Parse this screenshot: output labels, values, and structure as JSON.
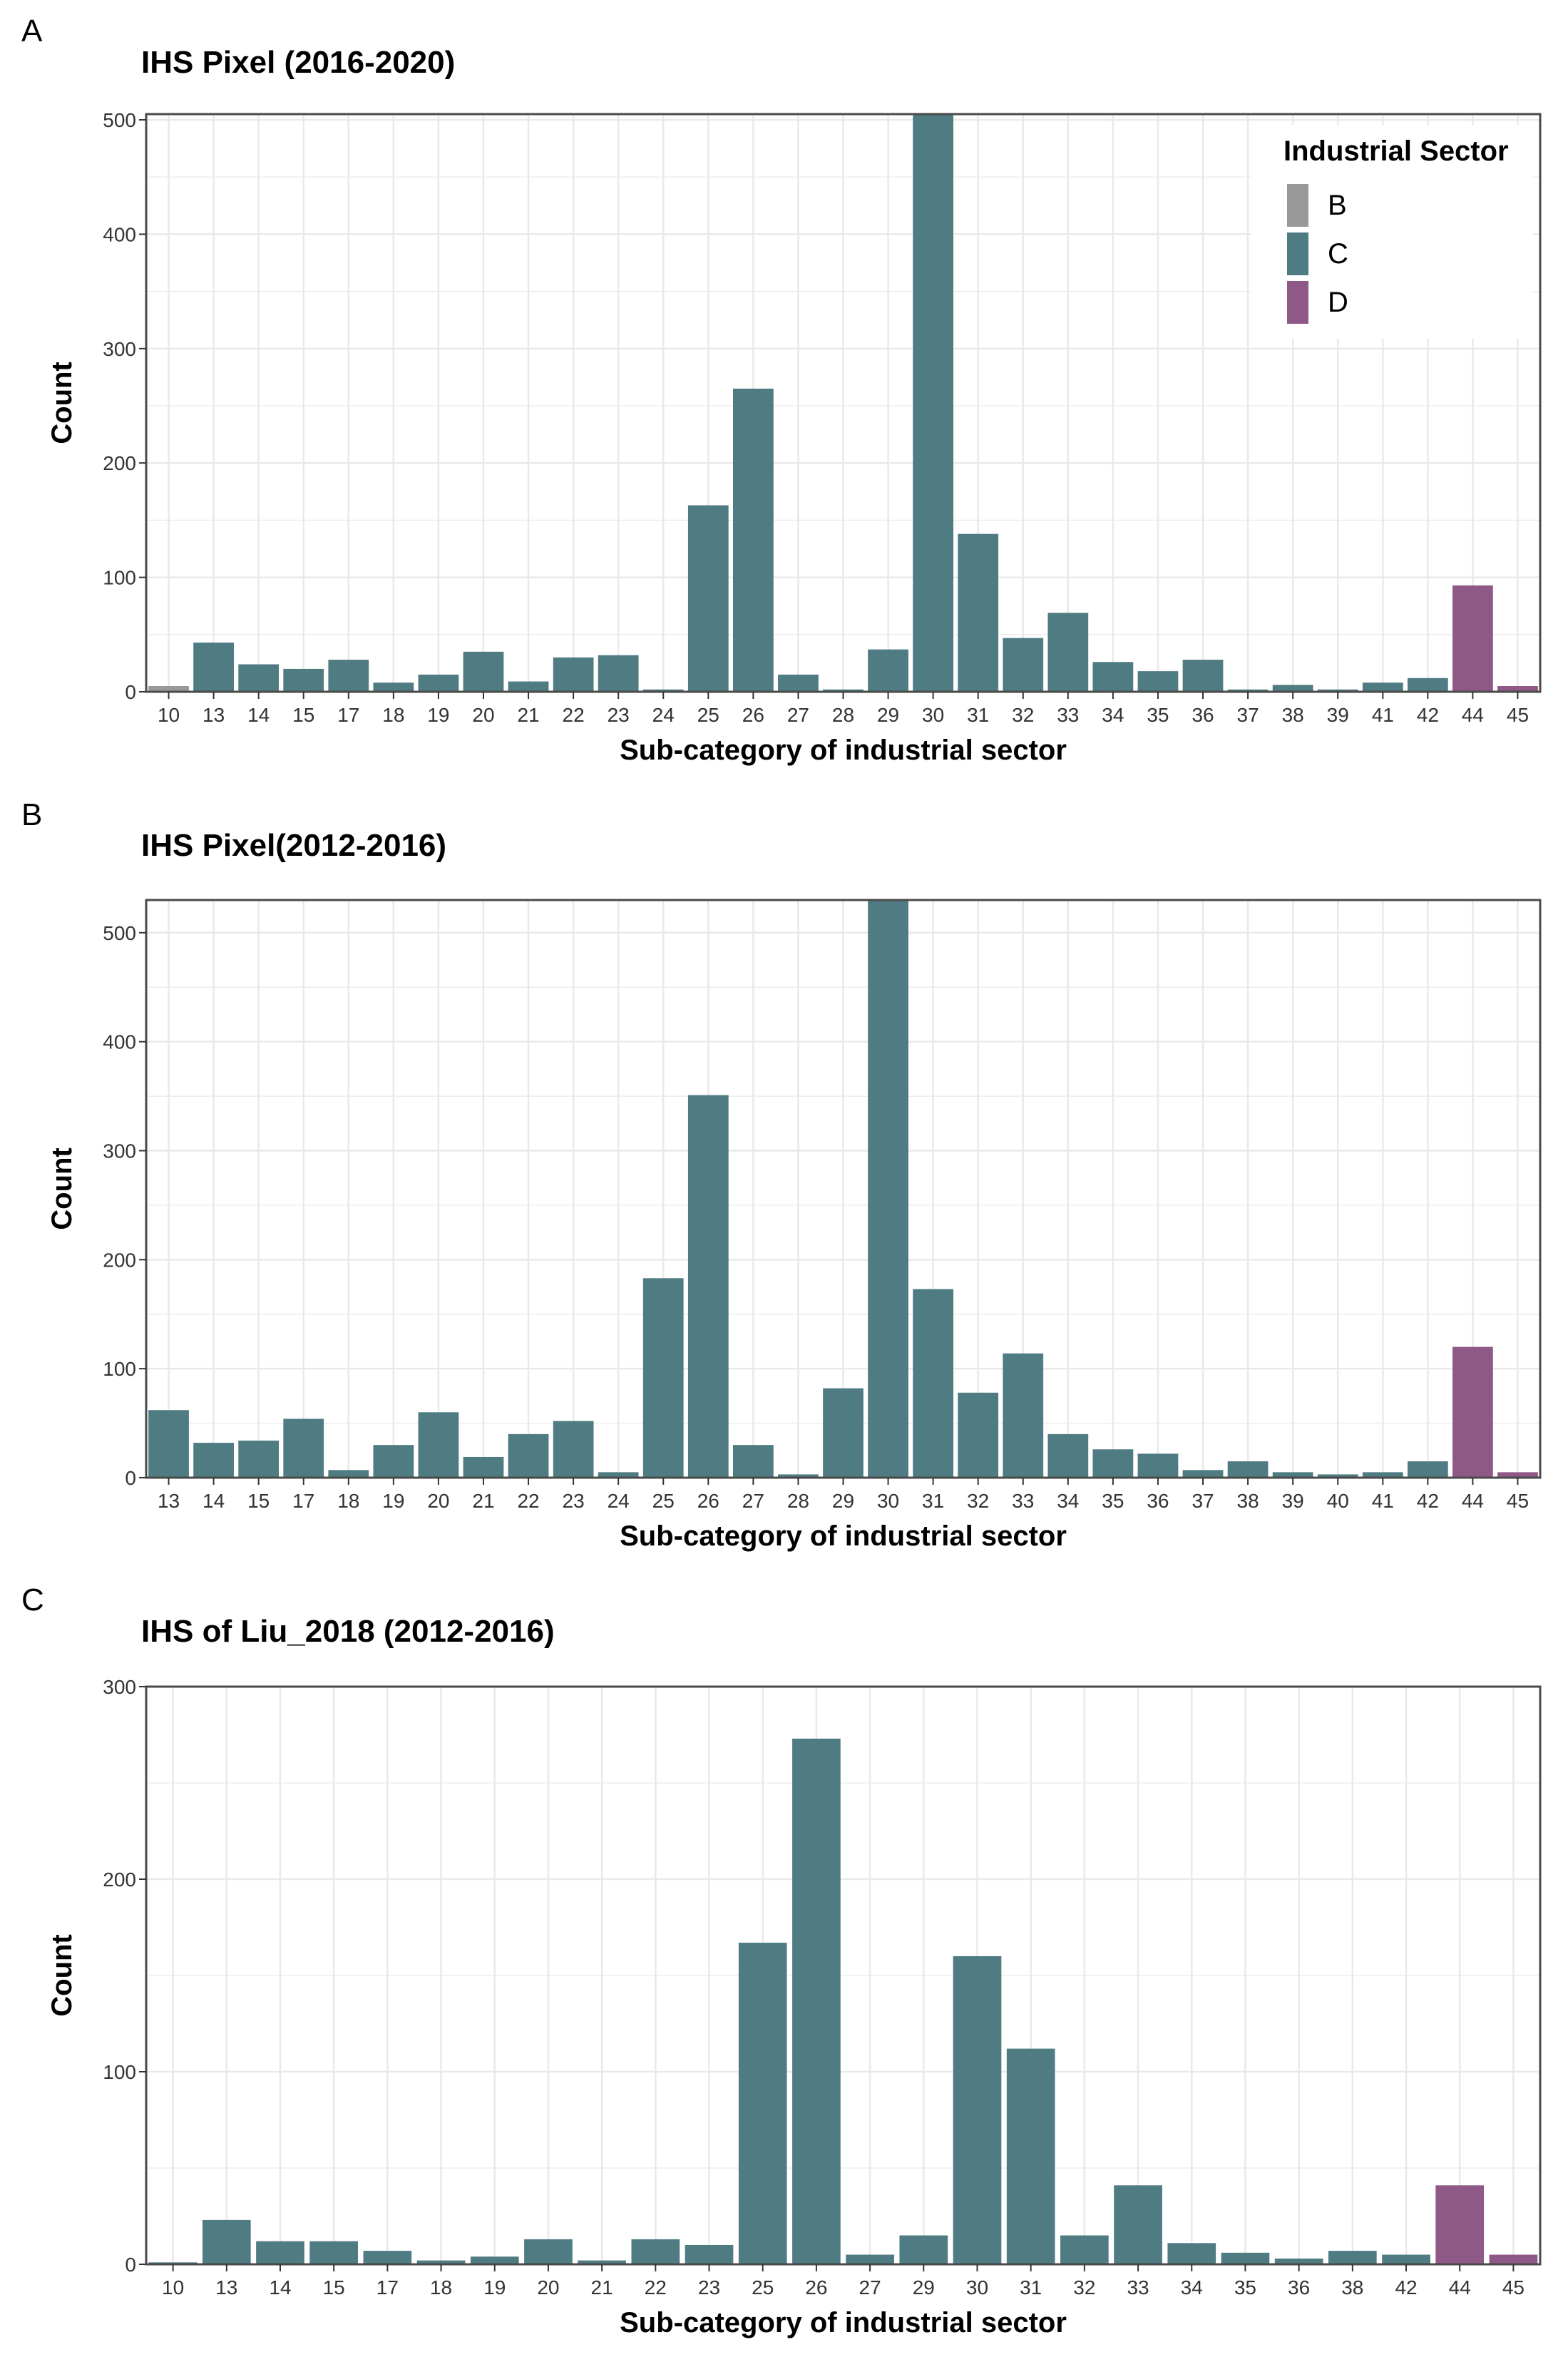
{
  "colors": {
    "B": "#999999",
    "C": "#4f7b83",
    "D": "#8e5887",
    "grid": "#e9e9e9",
    "border": "#4a4a4a"
  },
  "legend": {
    "title": "Industrial Sector",
    "items": [
      {
        "key": "B",
        "label": "B"
      },
      {
        "key": "C",
        "label": "C"
      },
      {
        "key": "D",
        "label": "D"
      }
    ]
  },
  "chart_data": [
    {
      "panel": "A",
      "type": "bar",
      "title": "IHS Pixel (2016-2020)",
      "xlabel": "Sub-category of industrial sector",
      "ylabel": "Count",
      "ylim": [
        0,
        505
      ],
      "yticks": [
        0,
        100,
        200,
        300,
        400,
        500
      ],
      "categories": [
        "10",
        "13",
        "14",
        "15",
        "17",
        "18",
        "19",
        "20",
        "21",
        "22",
        "23",
        "24",
        "25",
        "26",
        "27",
        "28",
        "29",
        "30",
        "31",
        "32",
        "33",
        "34",
        "35",
        "36",
        "37",
        "38",
        "39",
        "41",
        "42",
        "44",
        "45"
      ],
      "values": [
        5,
        43,
        24,
        20,
        28,
        8,
        15,
        35,
        9,
        30,
        32,
        2,
        163,
        265,
        15,
        2,
        37,
        505,
        138,
        47,
        69,
        26,
        18,
        28,
        2,
        6,
        2,
        8,
        12,
        93,
        5
      ],
      "sectors": [
        "B",
        "C",
        "C",
        "C",
        "C",
        "C",
        "C",
        "C",
        "C",
        "C",
        "C",
        "C",
        "C",
        "C",
        "C",
        "C",
        "C",
        "C",
        "C",
        "C",
        "C",
        "C",
        "C",
        "C",
        "C",
        "C",
        "C",
        "C",
        "C",
        "D",
        "D"
      ],
      "legend_position": "top-right"
    },
    {
      "panel": "B",
      "type": "bar",
      "title": "IHS Pixel(2012-2016)",
      "xlabel": "Sub-category of industrial sector",
      "ylabel": "Count",
      "ylim": [
        0,
        530
      ],
      "yticks": [
        0,
        100,
        200,
        300,
        400,
        500
      ],
      "categories": [
        "13",
        "14",
        "15",
        "17",
        "18",
        "19",
        "20",
        "21",
        "22",
        "23",
        "24",
        "25",
        "26",
        "27",
        "28",
        "29",
        "30",
        "31",
        "32",
        "33",
        "34",
        "35",
        "36",
        "37",
        "38",
        "39",
        "40",
        "41",
        "42",
        "44",
        "45"
      ],
      "values": [
        62,
        32,
        34,
        54,
        7,
        30,
        60,
        19,
        40,
        52,
        5,
        183,
        351,
        30,
        3,
        82,
        530,
        173,
        78,
        114,
        40,
        26,
        22,
        7,
        15,
        5,
        3,
        5,
        15,
        120,
        5
      ],
      "sectors": [
        "C",
        "C",
        "C",
        "C",
        "C",
        "C",
        "C",
        "C",
        "C",
        "C",
        "C",
        "C",
        "C",
        "C",
        "C",
        "C",
        "C",
        "C",
        "C",
        "C",
        "C",
        "C",
        "C",
        "C",
        "C",
        "C",
        "C",
        "C",
        "C",
        "D",
        "D"
      ]
    },
    {
      "panel": "C",
      "type": "bar",
      "title": "IHS of Liu_2018 (2012-2016)",
      "xlabel": "Sub-category of industrial sector",
      "ylabel": "Count",
      "ylim": [
        0,
        300
      ],
      "yticks": [
        0,
        100,
        200,
        300
      ],
      "categories": [
        "10",
        "13",
        "14",
        "15",
        "17",
        "18",
        "19",
        "20",
        "21",
        "22",
        "23",
        "25",
        "26",
        "27",
        "29",
        "30",
        "31",
        "32",
        "33",
        "34",
        "35",
        "36",
        "38",
        "42",
        "44",
        "45"
      ],
      "values": [
        1,
        23,
        12,
        12,
        7,
        2,
        4,
        13,
        2,
        13,
        10,
        167,
        273,
        5,
        15,
        160,
        112,
        15,
        41,
        11,
        6,
        3,
        7,
        5,
        41,
        5
      ],
      "sectors": [
        "C",
        "C",
        "C",
        "C",
        "C",
        "C",
        "C",
        "C",
        "C",
        "C",
        "C",
        "C",
        "C",
        "C",
        "C",
        "C",
        "C",
        "C",
        "C",
        "C",
        "C",
        "C",
        "C",
        "C",
        "D",
        "D"
      ]
    }
  ]
}
